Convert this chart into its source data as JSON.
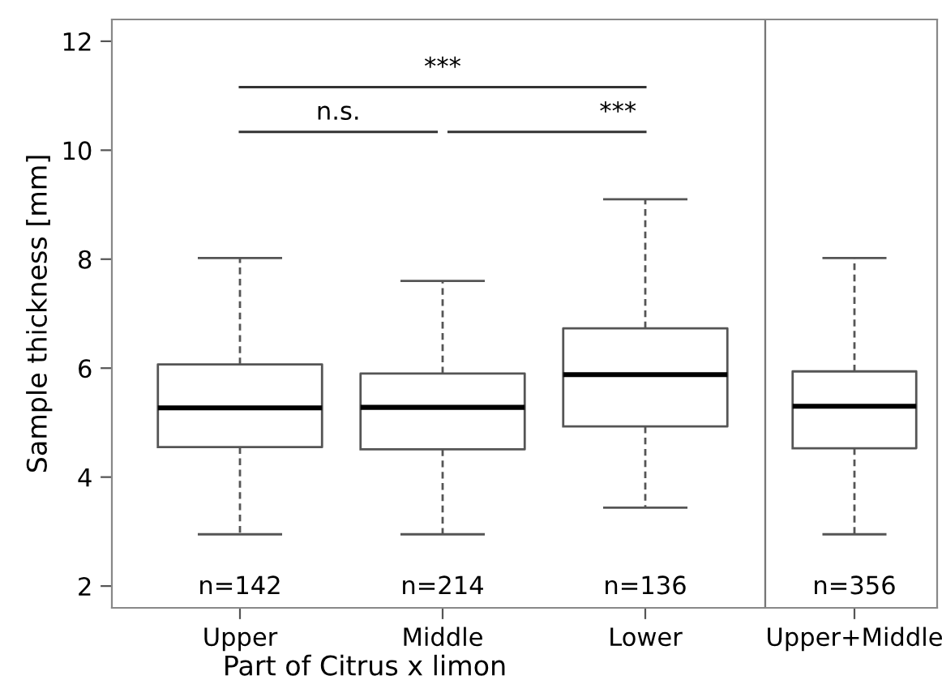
{
  "chart_data": [
    {
      "type": "box",
      "ylabel": "Sample thickness [mm]",
      "xlabel": "Part of Citrus x limon",
      "categories": [
        "Upper",
        "Middle",
        "Lower"
      ],
      "boxes": [
        {
          "low": 2.95,
          "q1": 4.55,
          "median": 5.27,
          "q3": 6.07,
          "high": 8.02
        },
        {
          "low": 2.95,
          "q1": 4.51,
          "median": 5.28,
          "q3": 5.9,
          "high": 7.6
        },
        {
          "low": 3.44,
          "q1": 4.93,
          "median": 5.88,
          "q3": 6.73,
          "high": 9.1
        }
      ],
      "ylim": [
        1.6,
        12.4
      ],
      "yticks": [
        2,
        4,
        6,
        8,
        10,
        12
      ],
      "grid": false,
      "annotations": [
        "***",
        "n.s.",
        "***",
        "n=142",
        "n=214",
        "n=136"
      ]
    },
    {
      "type": "box",
      "categories": [
        "Upper+Middle"
      ],
      "boxes": [
        {
          "low": 2.95,
          "q1": 4.53,
          "median": 5.3,
          "q3": 5.94,
          "high": 8.02
        }
      ],
      "ylim": [
        1.6,
        12.4
      ],
      "yticks": [
        2,
        4,
        6,
        8,
        10,
        12
      ],
      "grid": false,
      "tick_labels": "x",
      "annotations": [
        "n=356"
      ]
    }
  ]
}
